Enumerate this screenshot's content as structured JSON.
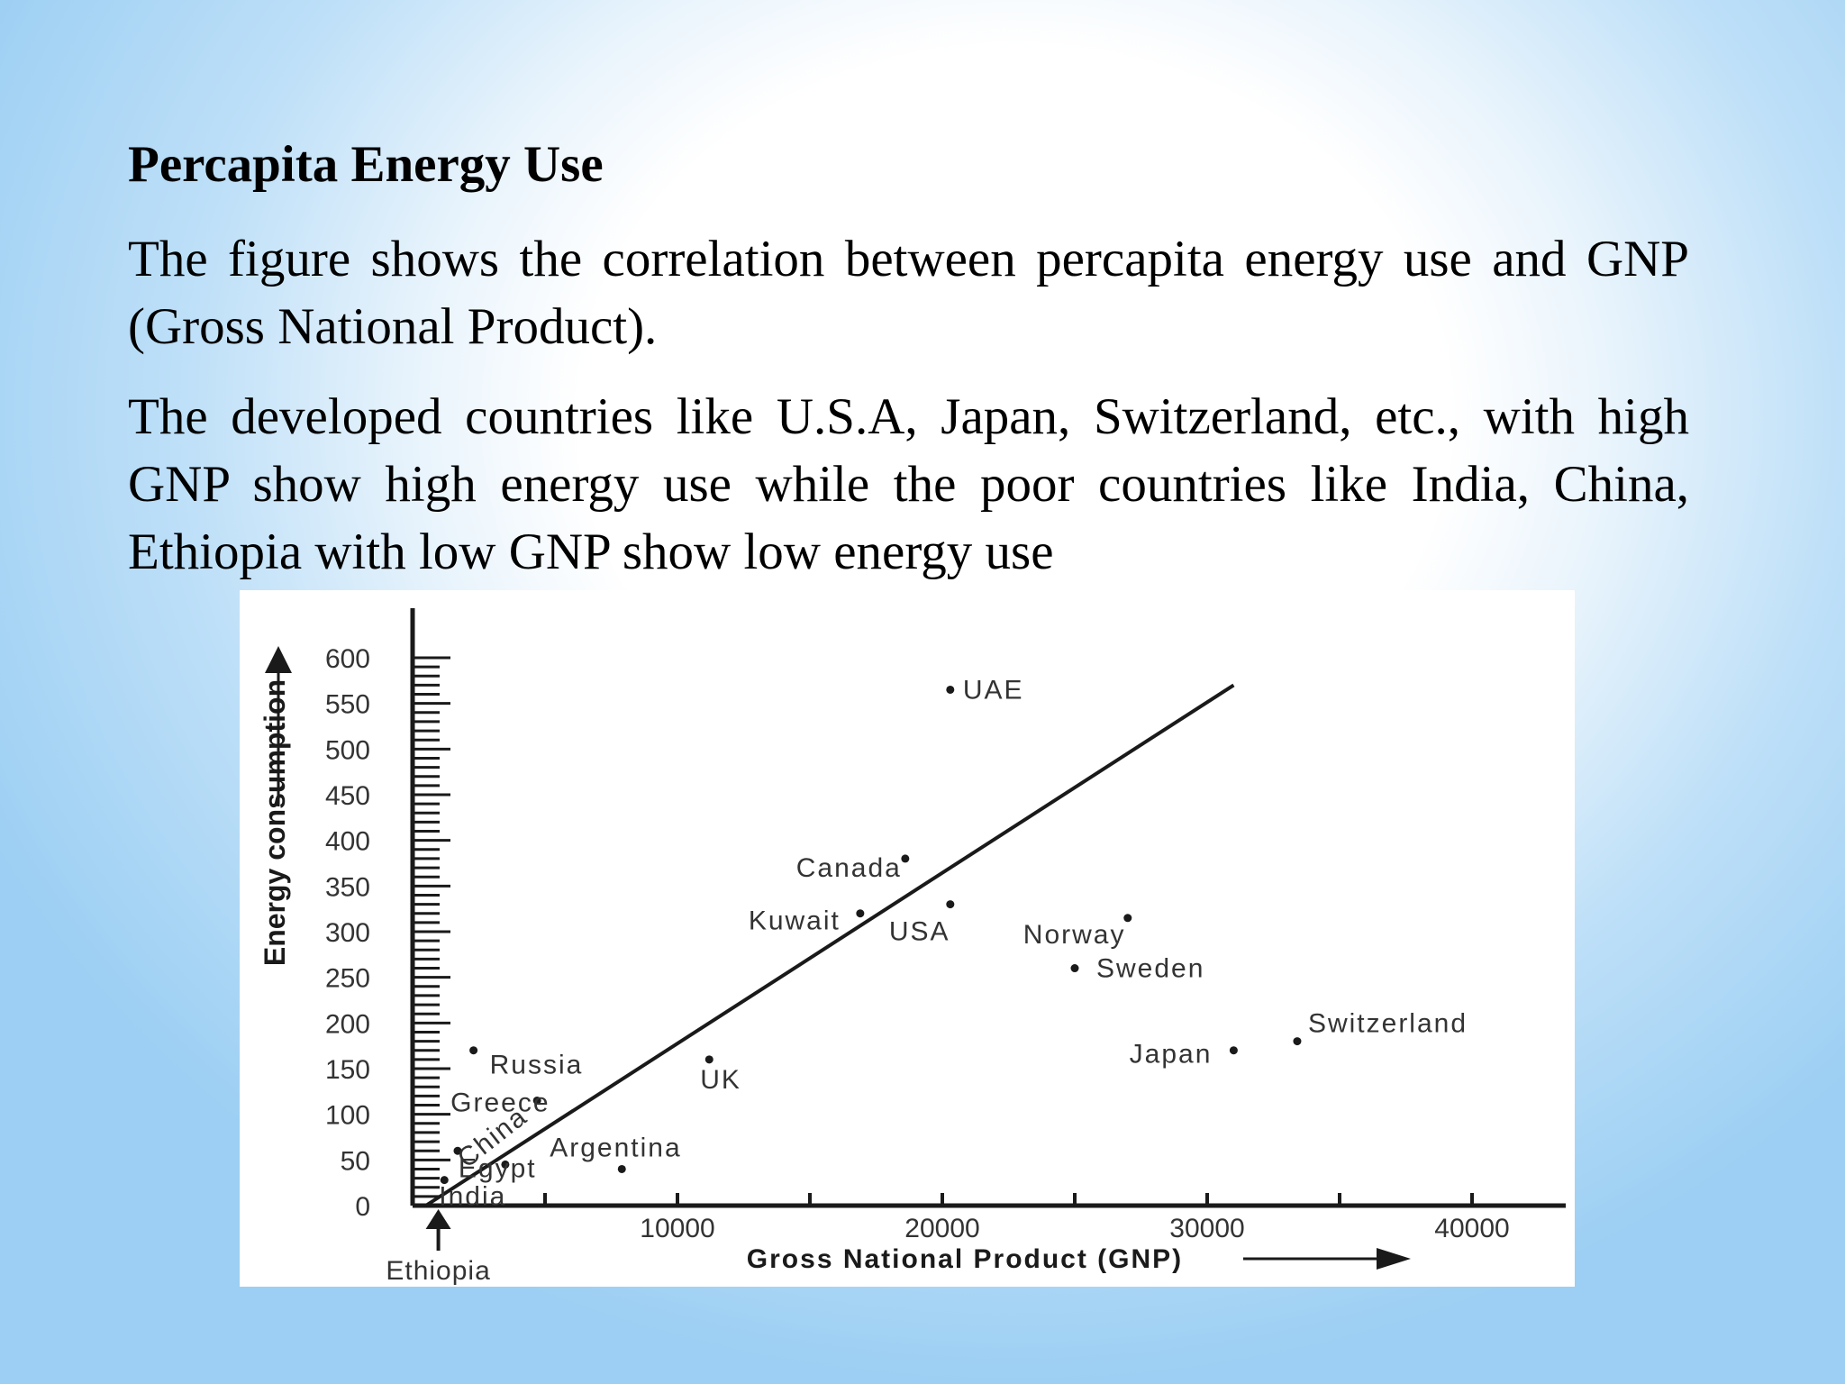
{
  "slide": {
    "heading": "Percapita Energy Use",
    "paragraph1": "The figure shows the correlation between percapita energy use and GNP (Gross National Product).",
    "paragraph2": "The developed countries like U.S.A, Japan, Switzerland, etc., with high GNP show high energy use while the poor countries like India, China, Ethiopia with low GNP show low energy use"
  },
  "chart_data": {
    "type": "scatter",
    "xlabel": "Gross National Product (GNP)",
    "ylabel": "Energy consumption",
    "xlim": [
      0,
      42000
    ],
    "ylim": [
      0,
      600
    ],
    "xticks": [
      "10000",
      "20000",
      "30000",
      "40000"
    ],
    "yticks": [
      "600",
      "550",
      "500",
      "450",
      "400",
      "350",
      "300",
      "250",
      "200",
      "150",
      "100",
      "50",
      "0"
    ],
    "grid": false,
    "legend": "none",
    "colors": {
      "ink": "#1a1a1a",
      "label": "#333333"
    },
    "points": [
      {
        "label": "UAE",
        "x": 20300,
        "y": 565
      },
      {
        "label": "Canada",
        "x": 18600,
        "y": 380
      },
      {
        "label": "USA",
        "x": 20300,
        "y": 330
      },
      {
        "label": "Kuwait",
        "x": 16900,
        "y": 320
      },
      {
        "label": "Norway",
        "x": 27000,
        "y": 315
      },
      {
        "label": "Sweden",
        "x": 25000,
        "y": 260
      },
      {
        "label": "Switzerland",
        "x": 33400,
        "y": 180
      },
      {
        "label": "Japan",
        "x": 31000,
        "y": 170
      },
      {
        "label": "Russia",
        "x": 2300,
        "y": 170
      },
      {
        "label": "UK",
        "x": 11200,
        "y": 160
      },
      {
        "label": "Greece",
        "x": 4700,
        "y": 115
      },
      {
        "label": "China",
        "x": 1700,
        "y": 60
      },
      {
        "label": "Argentina",
        "x": 7900,
        "y": 40
      },
      {
        "label": "Egypt",
        "x": 3500,
        "y": 45
      },
      {
        "label": "India",
        "x": 1200,
        "y": 28
      },
      {
        "label": "Ethiopia",
        "x": 700,
        "y": 8
      }
    ],
    "trendline": {
      "x": [
        500,
        31000
      ],
      "y": [
        0,
        570
      ]
    },
    "ethiopia_marker": "up-arrow"
  }
}
